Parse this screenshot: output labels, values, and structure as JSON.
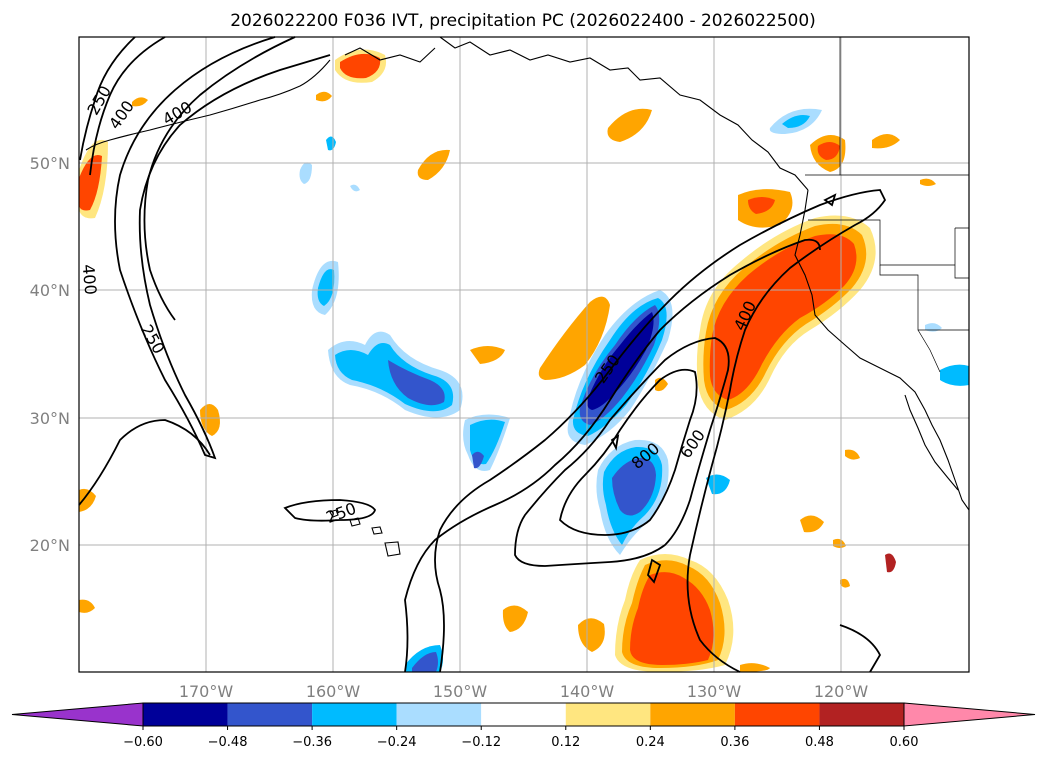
{
  "title": "2026022200 F036 IVT, precipitation PC (2026022400 - 2026022500)",
  "lon_labels": [
    "170°W",
    "160°W",
    "150°W",
    "140°W",
    "130°W",
    "120°W"
  ],
  "lat_labels": [
    "50°N",
    "40°N",
    "30°N",
    "20°N"
  ],
  "colorbar": {
    "ticks": [
      "−0.60",
      "−0.48",
      "−0.36",
      "−0.24",
      "−0.12",
      "0.12",
      "0.24",
      "0.36",
      "0.48",
      "0.60"
    ],
    "colors": [
      "#9933cc",
      "#000099",
      "#3355cc",
      "#00bbff",
      "#aaddff",
      "#ffffff",
      "#ffe680",
      "#ffa500",
      "#ff4500",
      "#b22222",
      "#ff88aa"
    ]
  },
  "contour_labels": [
    {
      "text": "250"
    },
    {
      "text": "400"
    },
    {
      "text": "400"
    },
    {
      "text": "400"
    },
    {
      "text": "250"
    },
    {
      "text": "250"
    },
    {
      "text": "250"
    },
    {
      "text": "800"
    },
    {
      "text": "600"
    },
    {
      "text": "400"
    }
  ]
}
